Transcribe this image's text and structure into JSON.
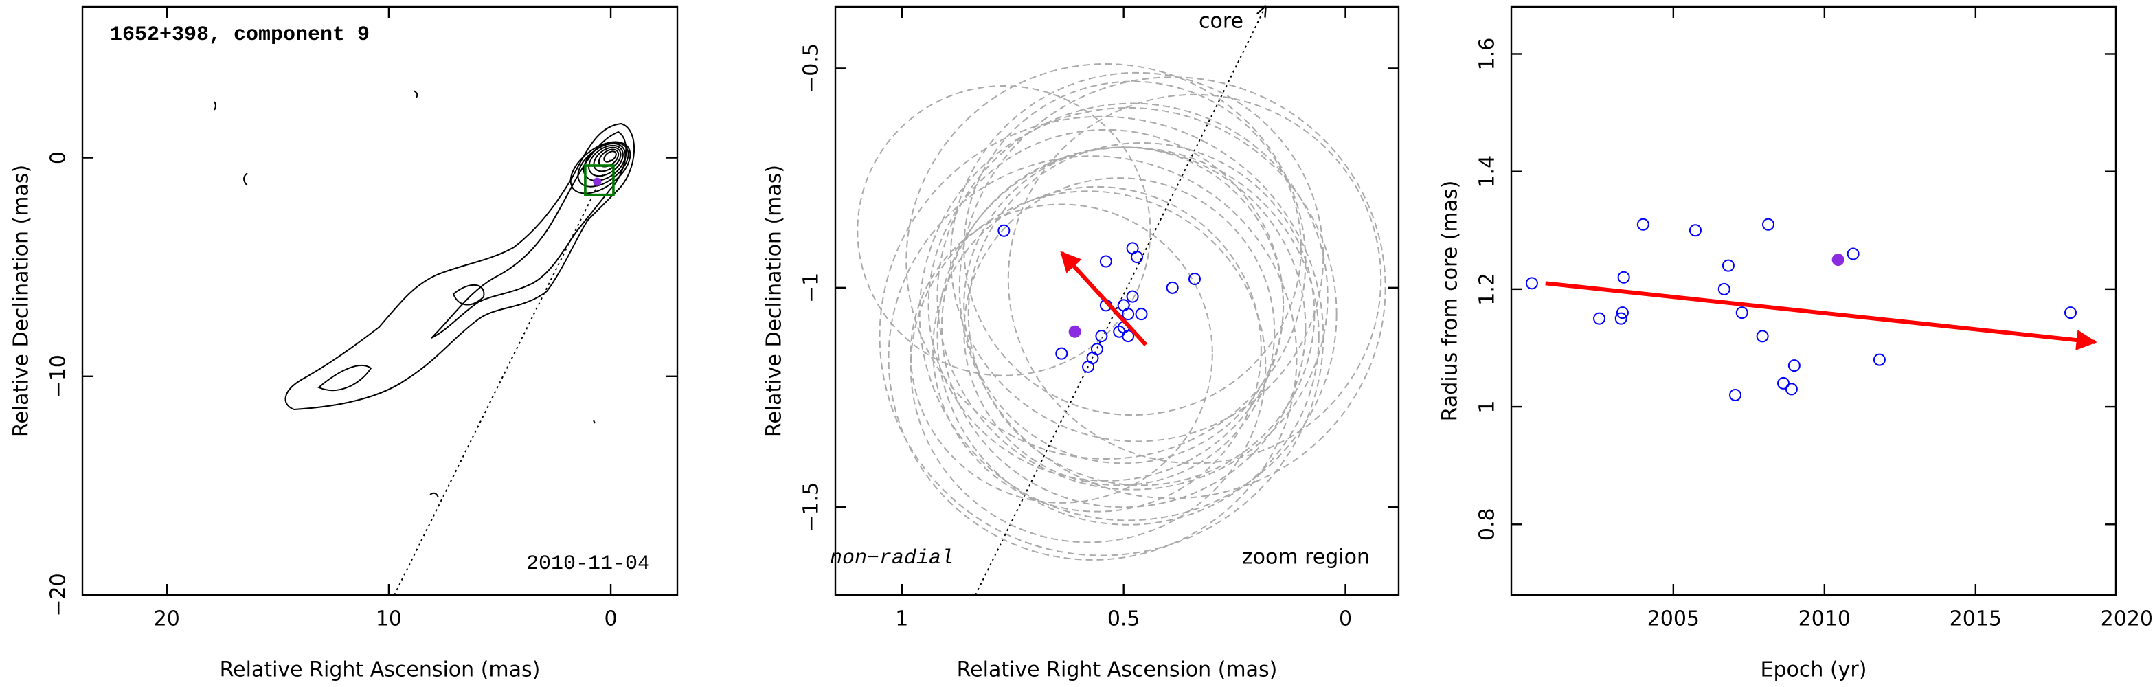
{
  "chart_data": [
    {
      "type": "map",
      "title": "1652+398, component 9",
      "annotation": "2010-11-04",
      "x_label": "Relative Right Ascension (mas)",
      "y_label": "Relative Declination (mas)",
      "xlim": [
        23.8,
        -3
      ],
      "ylim": [
        -20,
        6.9
      ],
      "xticks": [
        20,
        10,
        0
      ],
      "yticks": [
        0,
        {
          "value": -10,
          "label": "−10"
        },
        {
          "value": -20,
          "label": "−20"
        }
      ]
    },
    {
      "type": "scatter",
      "x_label": "Relative Right Ascension (mas)",
      "y_label": "Relative Declination (mas)",
      "annotations": [
        "core",
        "non−radial",
        "zoom region"
      ],
      "xlim": [
        1.15,
        -0.12
      ],
      "ylim": [
        -1.7,
        -0.36
      ],
      "xticks": [
        1,
        0.5,
        0
      ],
      "yticks": [
        {
          "value": -0.5,
          "label": "−0.5"
        },
        {
          "value": -1,
          "label": "−1"
        },
        {
          "value": -1.5,
          "label": "−1.5"
        }
      ],
      "series": [
        {
          "color": "#0000ff",
          "x": [
            0.77,
            0.54,
            0.48,
            0.47,
            0.54,
            0.5,
            0.48,
            0.46,
            0.49,
            0.5,
            0.51,
            0.49,
            0.55,
            0.56,
            0.57,
            0.58,
            0.64,
            0.39,
            0.34
          ],
          "values": [
            -0.87,
            -0.94,
            -0.91,
            -0.93,
            -1.04,
            -1.04,
            -1.02,
            -1.06,
            -1.06,
            -1.09,
            -1.1,
            -1.11,
            -1.11,
            -1.14,
            -1.16,
            -1.18,
            -1.15,
            -1.0,
            -0.98
          ],
          "errors": [
            0.33,
            0.45,
            0.38,
            0.42,
            0.4,
            0.36,
            0.44,
            0.39,
            0.47,
            0.41,
            0.35,
            0.43,
            0.5,
            0.37,
            0.46,
            0.4,
            0.34,
            0.48,
            0.42
          ],
          "error_color": "#aaaaaa"
        }
      ],
      "highlight": {
        "color": "#8a2be2",
        "x": 0.61,
        "y": -1.1
      },
      "arrow": {
        "color": "#ff0000",
        "x": [
          0.45,
          0.64
        ],
        "values": [
          -1.13,
          -0.92
        ]
      }
    },
    {
      "type": "scatter",
      "x_label": "Epoch (yr)",
      "y_label": "Radius from core (mas)",
      "xlim": [
        1999.64,
        2019.64
      ],
      "ylim": [
        0.68,
        1.68
      ],
      "xticks": [
        2005,
        2010,
        2015,
        2020
      ],
      "yticks": [
        0.8,
        1,
        1.2,
        1.4,
        1.6
      ],
      "series": [
        {
          "color": "#0000ff",
          "x": [
            2000.32,
            2002.55,
            2003.27,
            2003.32,
            2003.36,
            2004.0,
            2005.73,
            2006.68,
            2006.82,
            2007.27,
            2007.05,
            2007.95,
            2008.14,
            2008.64,
            2009.0,
            2008.91,
            2010.95,
            2011.82,
            2018.14
          ],
          "values": [
            1.21,
            1.15,
            1.15,
            1.16,
            1.22,
            1.31,
            1.3,
            1.2,
            1.24,
            1.16,
            1.02,
            1.12,
            1.31,
            1.04,
            1.07,
            1.03,
            1.26,
            1.08,
            1.16
          ]
        }
      ],
      "highlight": {
        "color": "#8a2be2",
        "x": 2010.45,
        "y": 1.25
      },
      "arrow": {
        "color": "#ff0000",
        "x": [
          2000.77,
          2018.95
        ],
        "values": [
          1.21,
          1.11
        ]
      }
    }
  ]
}
